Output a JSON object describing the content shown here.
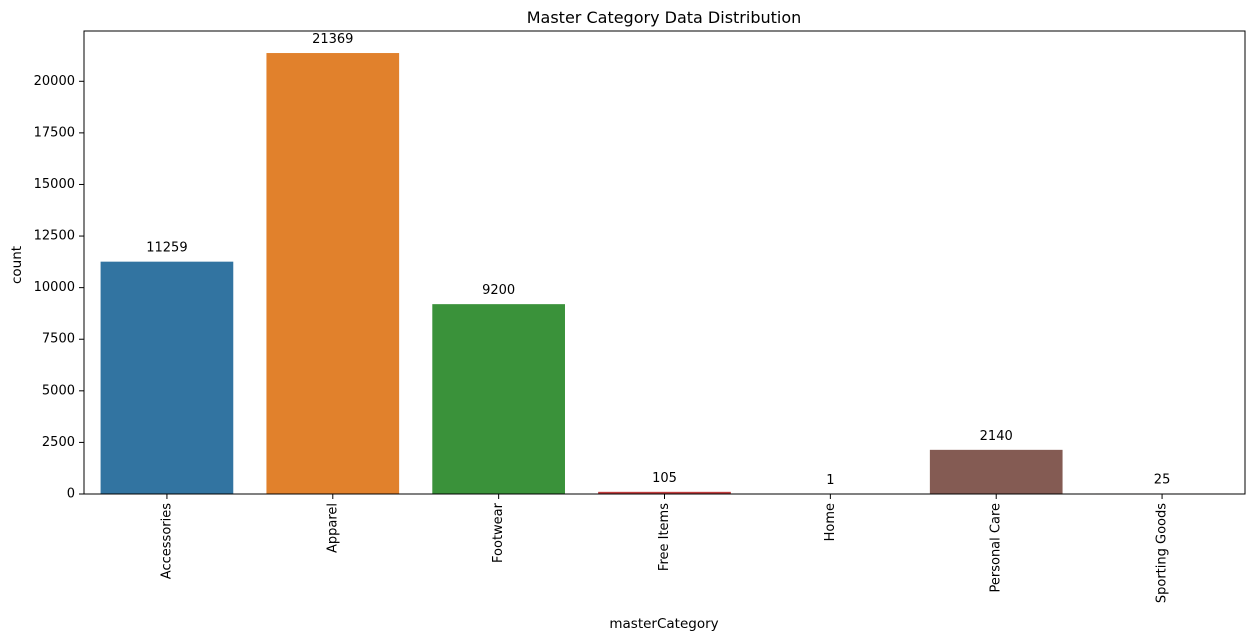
{
  "chart_data": {
    "type": "bar",
    "title": "Master Category Data Distribution",
    "xlabel": "masterCategory",
    "ylabel": "count",
    "categories": [
      "Accessories",
      "Apparel",
      "Footwear",
      "Free Items",
      "Home",
      "Personal Care",
      "Sporting Goods"
    ],
    "values": [
      11259,
      21369,
      9200,
      105,
      1,
      2140,
      25
    ],
    "data_labels": [
      "11259",
      "21369",
      "9200",
      "105",
      "1",
      "2140",
      "25"
    ],
    "colors": [
      "#3274a1",
      "#e1812c",
      "#3a923a",
      "#c03d3e",
      "#9372b2",
      "#845b53",
      "#d684bd"
    ],
    "yticks": [
      0,
      2500,
      5000,
      7500,
      10000,
      12500,
      15000,
      17500,
      20000
    ],
    "ylim": [
      0,
      22437
    ],
    "grid": false,
    "legend": "none"
  }
}
